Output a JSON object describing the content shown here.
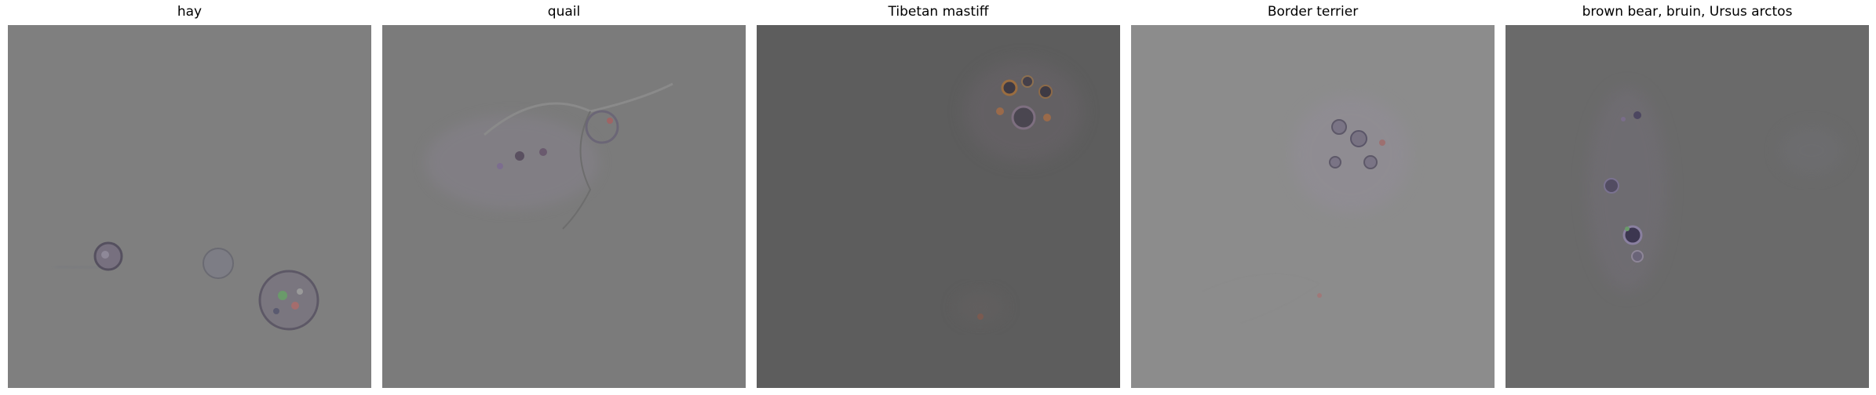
{
  "panels": [
    {
      "title": "hay",
      "background": "#7f7f7f"
    },
    {
      "title": "quail",
      "background": "#7b7b7b"
    },
    {
      "title": "Tibetan mastiff",
      "background": "#5d5d5d"
    },
    {
      "title": "Border terrier",
      "background": "#8c8c8c"
    },
    {
      "title": "brown bear, bruin, Ursus arctos",
      "background": "#6a6a6a"
    }
  ]
}
